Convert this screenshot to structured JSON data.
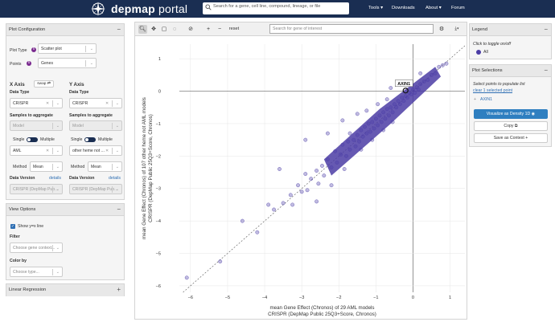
{
  "header": {
    "brand_bold": "depmap",
    "brand_thin": " portal",
    "search_placeholder": "Search for a gene, cell line, compound, lineage, or file",
    "nav": {
      "tools": "Tools ▾",
      "downloads": "Downloads",
      "about": "About ▾",
      "forum": "Forum"
    }
  },
  "plot_config": {
    "title": "Plot Configuration",
    "plot_type_label": "Plot Type",
    "plot_type_value": "Scatter plot",
    "points_label": "Points",
    "points_value": "Genes",
    "x_axis_title": "X Axis",
    "swap_label": "swap",
    "y_axis_title": "Y Axis",
    "data_type_label": "Data Type",
    "x_data_type": "CRISPR",
    "y_data_type": "CRISPR",
    "samples_label": "Samples to aggregate",
    "model_placeholder": "Model",
    "single_label": "Single",
    "multiple_label": "Multiple",
    "x_context": "AML",
    "y_context": "other heme not ...",
    "method_label": "Method",
    "x_method": "Mean",
    "y_method": "Mean",
    "data_version_label": "Data Version",
    "details_label": "details",
    "x_version": "CRISPR (DepMap Pub...",
    "y_version": "CRISPR (DepMap Pub..."
  },
  "view_options": {
    "title": "View Options",
    "show_line_label": "Show y=x line",
    "filter_label": "Filter",
    "filter_placeholder": "Choose gene context...",
    "color_by_label": "Color by",
    "color_by_placeholder": "Choose type..."
  },
  "linear_regression": {
    "title": "Linear Regression"
  },
  "toolbar": {
    "reset_label": "reset",
    "search_placeholder": "Search for gene of interest"
  },
  "legend": {
    "title": "Legend",
    "hint": "Click to toggle on/off",
    "entry_all": "All"
  },
  "plot_selections": {
    "title": "Plot Selections",
    "hint": "Select points to populate list",
    "clear_link": "clear 1 selected point",
    "selected_gene": "AXIN1",
    "visualize_button": "Visualize as Density 1D",
    "copy_button": "Copy",
    "save_button": "Save as Context +"
  },
  "colors": {
    "navbar": "#1a2e52",
    "points": "#4b3ca5",
    "accent": "#2f7fc0"
  },
  "chart_data": {
    "type": "scatter",
    "title": "",
    "xlabel_line1": "mean Gene Effect (Chronos) of 29 AML models",
    "xlabel_line2": "CRISPR (DepMap Public 25Q3+Score, Chronos)",
    "ylabel_line1": "mean Gene Effect (Chronos) of 107 other heme not AML models",
    "ylabel_line2": "CRISPR (DepMap Public 25Q3+Score, Chronos)",
    "xlim": [
      -6.3,
      1.4
    ],
    "ylim": [
      -6.2,
      1.45
    ],
    "x_ticks": [
      -6,
      -5,
      -4,
      -3,
      -2,
      -1,
      0,
      1
    ],
    "y_ticks": [
      -6,
      -5,
      -4,
      -3,
      -2,
      -1,
      0,
      1
    ],
    "reference_line": "y = x",
    "highlighted": {
      "label": "AXIN1",
      "x": -0.2,
      "y": 0.02
    },
    "points": [
      [
        -6.1,
        -5.75
      ],
      [
        -5.2,
        -5.25
      ],
      [
        -4.2,
        -4.35
      ],
      [
        -3.9,
        -3.5
      ],
      [
        -3.75,
        -3.65
      ],
      [
        -3.5,
        -3.45
      ],
      [
        -3.3,
        -3.2
      ],
      [
        -3.25,
        -3.5
      ],
      [
        -3.1,
        -2.9
      ],
      [
        -3.0,
        -3.1
      ],
      [
        -2.9,
        -2.55
      ],
      [
        -2.85,
        -3.05
      ],
      [
        -2.75,
        -2.7
      ],
      [
        -2.6,
        -2.45
      ],
      [
        -2.55,
        -2.85
      ],
      [
        -2.45,
        -2.3
      ],
      [
        -2.4,
        -2.6
      ],
      [
        -2.3,
        -2.1
      ],
      [
        -2.2,
        -2.35
      ],
      [
        -2.1,
        -1.85
      ],
      [
        -2.05,
        -2.2
      ],
      [
        -1.95,
        -1.95
      ],
      [
        -1.9,
        -1.65
      ],
      [
        -1.8,
        -2.0
      ],
      [
        -1.75,
        -1.55
      ],
      [
        -1.7,
        -1.8
      ],
      [
        -1.6,
        -1.5
      ],
      [
        -1.55,
        -1.7
      ],
      [
        -1.5,
        -1.35
      ],
      [
        -1.45,
        -1.55
      ],
      [
        -1.4,
        -1.2
      ],
      [
        -1.35,
        -1.4
      ],
      [
        -1.3,
        -1.1
      ],
      [
        -1.25,
        -1.3
      ],
      [
        -1.2,
        -1.0
      ],
      [
        -1.15,
        -1.25
      ],
      [
        -1.1,
        -0.95
      ],
      [
        -1.05,
        -1.15
      ],
      [
        -1.0,
        -0.85
      ],
      [
        -0.95,
        -1.05
      ],
      [
        -0.9,
        -0.75
      ],
      [
        -0.85,
        -0.95
      ],
      [
        -0.8,
        -0.65
      ],
      [
        -0.75,
        -0.85
      ],
      [
        -0.7,
        -0.55
      ],
      [
        -0.65,
        -0.75
      ],
      [
        -0.6,
        -0.5
      ],
      [
        -0.55,
        -0.65
      ],
      [
        -0.5,
        -0.4
      ],
      [
        -0.45,
        -0.5
      ],
      [
        -0.4,
        -0.3
      ],
      [
        -0.35,
        -0.4
      ],
      [
        -0.3,
        -0.2
      ],
      [
        -0.25,
        -0.3
      ],
      [
        -0.2,
        -0.15
      ],
      [
        -0.15,
        -0.2
      ],
      [
        -0.1,
        -0.05
      ],
      [
        -0.05,
        -0.1
      ],
      [
        0.0,
        0.05
      ],
      [
        0.05,
        -0.05
      ],
      [
        0.1,
        0.12
      ],
      [
        0.15,
        0.05
      ],
      [
        0.2,
        0.22
      ],
      [
        0.3,
        0.3
      ],
      [
        0.4,
        0.35
      ],
      [
        0.5,
        0.5
      ],
      [
        0.6,
        0.55
      ],
      [
        0.7,
        0.75
      ],
      [
        0.8,
        0.8
      ],
      [
        0.9,
        0.85
      ],
      [
        -4.6,
        -4.0
      ],
      [
        -3.6,
        -2.4
      ],
      [
        -2.9,
        -1.5
      ],
      [
        -2.3,
        -1.3
      ],
      [
        -1.9,
        -0.9
      ],
      [
        -1.5,
        -0.7
      ],
      [
        -1.25,
        -0.6
      ],
      [
        -0.95,
        -0.4
      ],
      [
        -0.7,
        -0.25
      ],
      [
        -2.6,
        -3.4
      ],
      [
        -2.2,
        -2.9
      ],
      [
        -1.85,
        -2.4
      ],
      [
        -1.4,
        -1.8
      ],
      [
        -1.1,
        -1.5
      ],
      [
        -0.8,
        -1.2
      ],
      [
        -0.55,
        -0.95
      ],
      [
        -1.7,
        -1.3
      ],
      [
        -0.6,
        0.1
      ],
      [
        -0.35,
        0.2
      ],
      [
        0.2,
        0.55
      ]
    ]
  }
}
